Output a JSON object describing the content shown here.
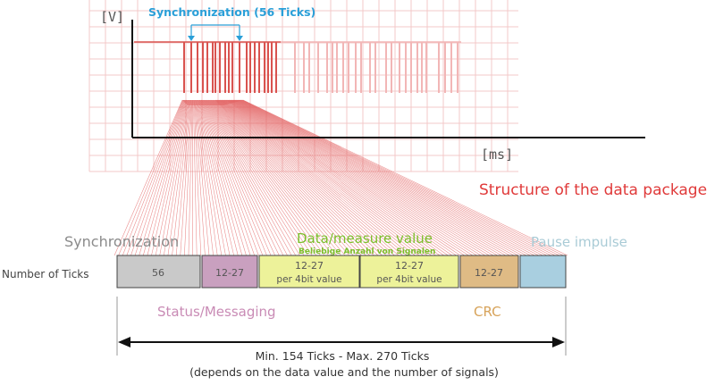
{
  "colors": {
    "grid": "#f3c9c9",
    "pulse_strong": "#d9534f",
    "pulse_faint": "#f2b6b6",
    "fan": "#e25d5d",
    "title_red": "#e03a3a",
    "sync_label": "#8b8b8b",
    "data_label": "#7bbf2a",
    "pause_label": "#a9cbd6",
    "status_label": "#c98bb5",
    "crc_label": "#d7a35a",
    "sync_bracket": "#2a9fd8",
    "box_sync": "#c9c9c9",
    "box_status": "#c9a0bf",
    "box_data": "#edf29a",
    "box_crc": "#dfbb85",
    "box_pause": "#a9cfe0"
  },
  "axes": {
    "y_label": "[V]",
    "x_label": "[ms]"
  },
  "sync_annotation": "Synchronization (56 Ticks)",
  "structure_title": "Structure of the data package",
  "labels": {
    "synchronization": "Synchronization",
    "data_value": "Data/measure value",
    "data_sub": "Beliebige Anzahl von Signalen",
    "pause": "Pause impulse",
    "status": "Status/Messaging",
    "crc": "CRC",
    "number_of_ticks": "Number of Ticks"
  },
  "boxes": {
    "sync": "56",
    "status": "12-27",
    "data1_line1": "12-27",
    "data1_line2": "per 4bit value",
    "data2_line1": "12-27",
    "data2_line2": "per 4bit value",
    "crc": "12-27",
    "pause": ""
  },
  "range": {
    "line1": "Min. 154 Ticks - Max. 270 Ticks",
    "line2": "(depends on the data value and the number of signals)"
  }
}
